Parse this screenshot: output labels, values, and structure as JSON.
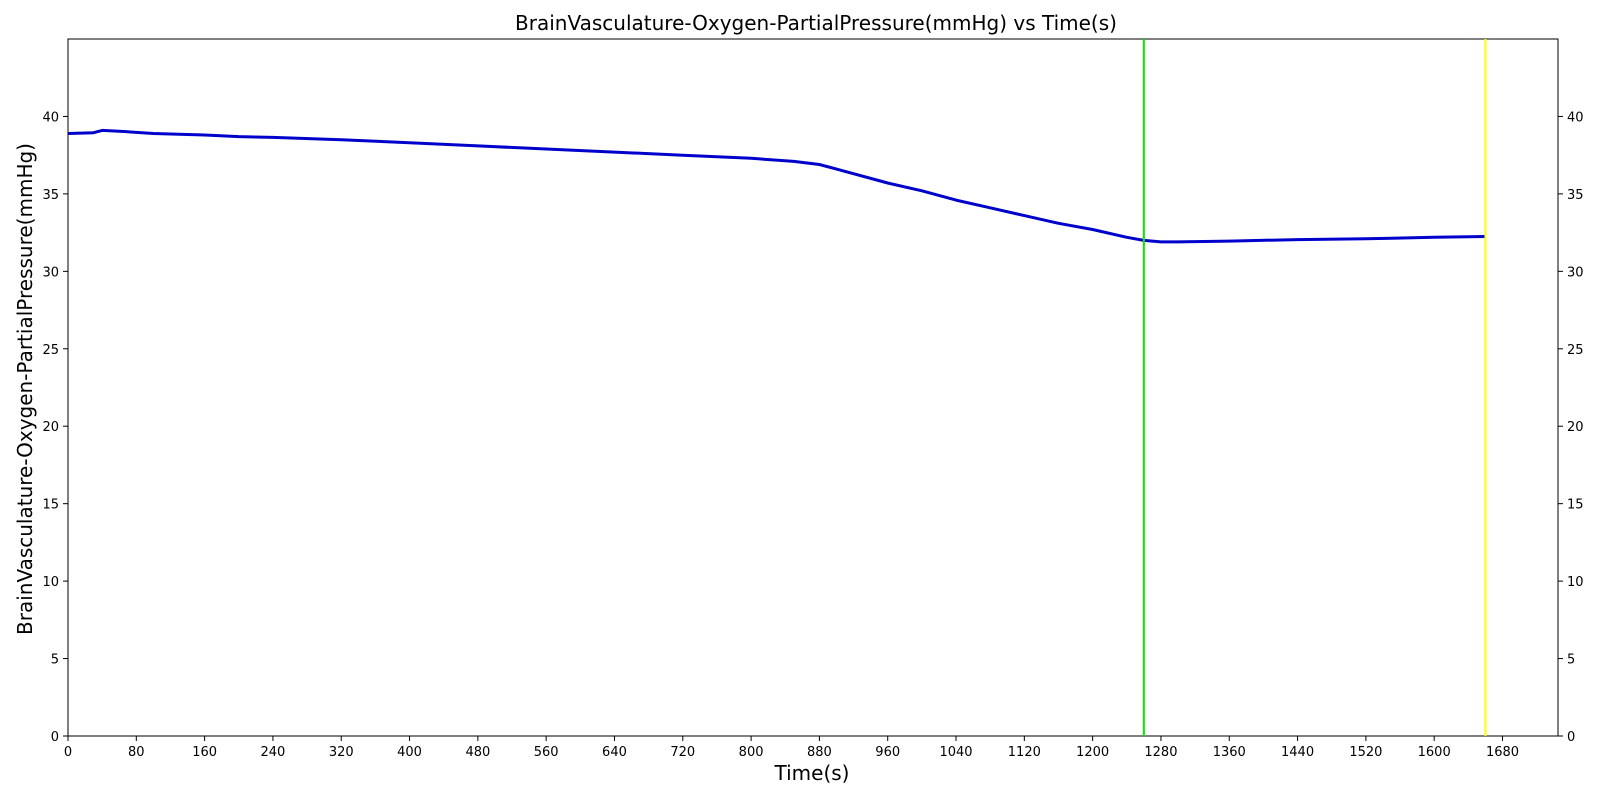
{
  "chart_data": {
    "type": "line",
    "title": "BrainVasculature-Oxygen-PartialPressure(mmHg) vs Time(s)",
    "xlabel": "Time(s)",
    "ylabel": "BrainVasculature-Oxygen-PartialPressure(mmHg)",
    "xlim": [
      0,
      1745
    ],
    "ylim": [
      0,
      45
    ],
    "xticks": [
      0,
      80,
      160,
      240,
      320,
      400,
      480,
      560,
      640,
      720,
      800,
      880,
      960,
      1040,
      1120,
      1200,
      1280,
      1360,
      1440,
      1520,
      1600,
      1680
    ],
    "yticks": [
      0,
      5,
      10,
      15,
      20,
      25,
      30,
      35,
      40
    ],
    "grid": false,
    "right_axis_mirrored": true,
    "series": [
      {
        "color": "#0000cc",
        "x": [
          0,
          30,
          40,
          60,
          100,
          160,
          200,
          240,
          320,
          400,
          480,
          560,
          640,
          720,
          800,
          850,
          880,
          900,
          960,
          1000,
          1040,
          1080,
          1120,
          1160,
          1200,
          1240,
          1260,
          1280,
          1300,
          1360,
          1440,
          1520,
          1600,
          1660
        ],
        "y": [
          38.9,
          38.95,
          39.1,
          39.05,
          38.9,
          38.8,
          38.7,
          38.65,
          38.5,
          38.3,
          38.1,
          37.9,
          37.7,
          37.5,
          37.3,
          37.1,
          36.9,
          36.6,
          35.7,
          35.2,
          34.6,
          34.1,
          33.6,
          33.1,
          32.7,
          32.2,
          32.0,
          31.9,
          31.9,
          31.95,
          32.05,
          32.1,
          32.2,
          32.25
        ]
      }
    ],
    "vlines": [
      {
        "x": 1260,
        "color": "#00ee00"
      },
      {
        "x": 1660,
        "color": "#ffff00"
      }
    ]
  }
}
